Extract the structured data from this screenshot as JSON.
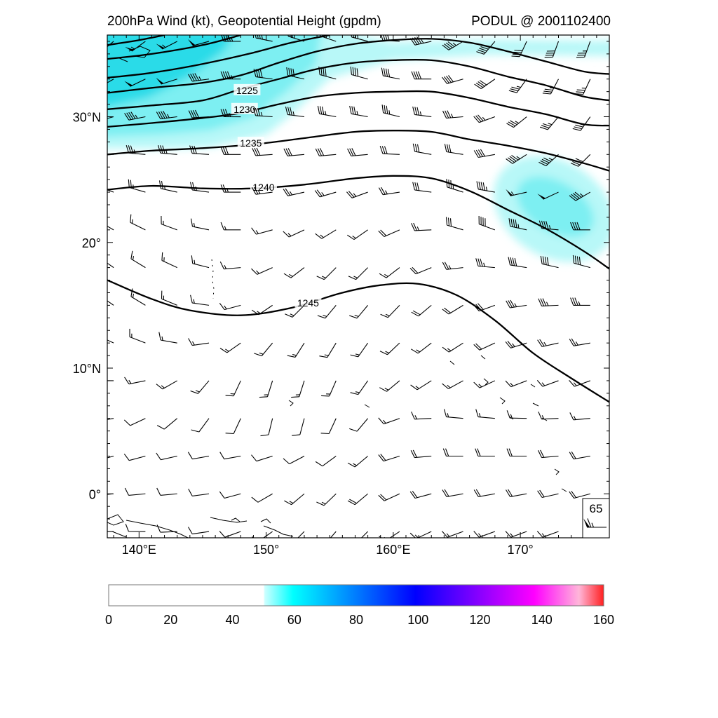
{
  "header": {
    "title": "200hPa Wind (kt), Geopotential Height (gpdm)",
    "storm_label": "PODUL @ 2001102400"
  },
  "map": {
    "lon_range": [
      137.5,
      177.0
    ],
    "lat_range": [
      -3.5,
      36.5
    ],
    "lon_ticks": [
      {
        "value": 140,
        "label": "140°E"
      },
      {
        "value": 150,
        "label": "150°"
      },
      {
        "value": 160,
        "label": "160°E"
      },
      {
        "value": 170,
        "label": "170°"
      }
    ],
    "lat_ticks": [
      {
        "value": 30,
        "label": "30°N"
      },
      {
        "value": 20,
        "label": "20°"
      },
      {
        "value": 10,
        "label": "10°N"
      },
      {
        "value": 0,
        "label": "0°"
      }
    ],
    "shading_colors": {
      "light": "#b8f8f8",
      "mid": "#7deff2",
      "strong": "#29dbe8"
    },
    "contour_color": "#000000",
    "geopotential_contours": [
      {
        "value": 1245,
        "label": "1245",
        "points": [
          [
            137.5,
            17
          ],
          [
            141,
            15.5
          ],
          [
            144,
            14.6
          ],
          [
            148,
            14.2
          ],
          [
            152,
            14.8
          ],
          [
            156,
            16
          ],
          [
            159,
            16.6
          ],
          [
            162,
            16.7
          ],
          [
            165,
            15.8
          ],
          [
            168,
            13.8
          ],
          [
            171,
            11.2
          ],
          [
            174,
            9.2
          ],
          [
            177,
            7.3
          ]
        ],
        "label_at": [
          153.3,
          15.2
        ]
      },
      {
        "value": 1240,
        "label": "1240",
        "points": [
          [
            137.5,
            24.2
          ],
          [
            141,
            24.5
          ],
          [
            145,
            24.3
          ],
          [
            149,
            24.3
          ],
          [
            153,
            24.6
          ],
          [
            157,
            25.1
          ],
          [
            160,
            25.3
          ],
          [
            163,
            25.1
          ],
          [
            166,
            24.1
          ],
          [
            169,
            22.6
          ],
          [
            172,
            21.1
          ],
          [
            175,
            19.3
          ],
          [
            177,
            17.9
          ]
        ],
        "label_at": [
          149.8,
          24.4
        ]
      },
      {
        "value": 1235,
        "label": "1235",
        "points": [
          [
            137.5,
            27
          ],
          [
            141,
            27.3
          ],
          [
            145,
            27.5
          ],
          [
            149,
            27.8
          ],
          [
            153,
            28.3
          ],
          [
            157,
            28.8
          ],
          [
            160,
            28.9
          ],
          [
            163,
            28.8
          ],
          [
            166,
            28.2
          ],
          [
            169,
            27.7
          ],
          [
            172,
            27.1
          ],
          [
            175,
            26.3
          ],
          [
            177,
            25.7
          ]
        ],
        "label_at": [
          148.8,
          27.9
        ]
      },
      {
        "value": 1230,
        "label": "1230",
        "points": [
          [
            137.5,
            29.2
          ],
          [
            141,
            29.5
          ],
          [
            145,
            29.9
          ],
          [
            148,
            30.3
          ],
          [
            151,
            31
          ],
          [
            154,
            31.6
          ],
          [
            157,
            31.9
          ],
          [
            160,
            32
          ],
          [
            163,
            32
          ],
          [
            166,
            31.5
          ],
          [
            169,
            30.8
          ],
          [
            172,
            30.2
          ],
          [
            175,
            29.4
          ],
          [
            177,
            29.3
          ]
        ],
        "label_at": [
          148.3,
          30.6
        ]
      },
      {
        "value": 1225,
        "label": "1225",
        "points": [
          [
            137.5,
            30.6
          ],
          [
            141,
            30.9
          ],
          [
            145,
            31.3
          ],
          [
            148,
            32.2
          ],
          [
            151,
            33
          ],
          [
            154,
            33.8
          ],
          [
            157,
            34.3
          ],
          [
            160,
            34.5
          ],
          [
            163,
            34.5
          ],
          [
            166,
            34
          ],
          [
            169,
            33.2
          ],
          [
            172,
            32.5
          ],
          [
            175,
            31.6
          ],
          [
            177,
            31.3
          ]
        ],
        "label_at": [
          148.5,
          32.1
        ]
      },
      {
        "value": 1220,
        "label": "",
        "points": [
          [
            137.5,
            31.9
          ],
          [
            141,
            32.3
          ],
          [
            145,
            32.7
          ],
          [
            148,
            33.3
          ],
          [
            151,
            34.3
          ],
          [
            154,
            35.2
          ],
          [
            157,
            35.8
          ],
          [
            160,
            36.1
          ],
          [
            163,
            36.2
          ],
          [
            166,
            35.9
          ],
          [
            169,
            35.2
          ],
          [
            172,
            34.4
          ],
          [
            175,
            33.6
          ],
          [
            177,
            33.4
          ]
        ],
        "label_at": null
      },
      {
        "value": 1215,
        "label": "",
        "points": [
          [
            137.5,
            33.1
          ],
          [
            141,
            33.5
          ],
          [
            145,
            34.2
          ],
          [
            149,
            35.1
          ],
          [
            152,
            35.9
          ],
          [
            155,
            36.5
          ]
        ],
        "label_at": null
      },
      {
        "value": 1210,
        "label": "",
        "points": [
          [
            137.5,
            34.6
          ],
          [
            141,
            35
          ],
          [
            145,
            35.7
          ],
          [
            148,
            36.5
          ]
        ],
        "label_at": null
      },
      {
        "value": 1205,
        "label": "",
        "points": [
          [
            137.5,
            35.7
          ],
          [
            140,
            36.1
          ],
          [
            142,
            36.5
          ]
        ],
        "label_at": null
      }
    ],
    "wind_barbs": {
      "direction_anchors": [
        [
          36,
          230,
          235,
          250,
          270,
          285,
          290,
          285,
          270,
          245,
          220,
          200,
          200
        ],
        [
          33,
          240,
          245,
          260,
          270,
          280,
          285,
          285,
          280,
          260,
          235,
          210,
          205
        ],
        [
          30,
          255,
          260,
          265,
          270,
          275,
          280,
          280,
          285,
          270,
          250,
          225,
          215
        ],
        [
          27,
          275,
          275,
          275,
          270,
          265,
          265,
          265,
          275,
          285,
          260,
          230,
          225
        ],
        [
          24,
          290,
          285,
          280,
          270,
          260,
          255,
          250,
          265,
          290,
          280,
          250,
          240
        ],
        [
          21,
          300,
          295,
          285,
          270,
          250,
          240,
          235,
          250,
          285,
          290,
          280,
          270
        ],
        [
          18,
          305,
          300,
          290,
          265,
          240,
          225,
          225,
          235,
          260,
          275,
          280,
          285
        ],
        [
          15,
          305,
          300,
          285,
          255,
          230,
          220,
          220,
          225,
          235,
          250,
          265,
          270
        ],
        [
          12,
          295,
          290,
          270,
          235,
          215,
          210,
          215,
          230,
          235,
          245,
          255,
          260
        ],
        [
          9,
          270,
          255,
          225,
          205,
          195,
          200,
          215,
          235,
          240,
          245,
          250,
          250
        ],
        [
          6,
          260,
          240,
          220,
          205,
          190,
          200,
          220,
          260,
          275,
          275,
          270,
          265
        ],
        [
          3,
          255,
          255,
          260,
          260,
          250,
          235,
          230,
          260,
          270,
          270,
          270,
          260
        ],
        [
          0,
          265,
          265,
          265,
          255,
          235,
          225,
          230,
          250,
          260,
          260,
          260,
          255
        ],
        [
          -3,
          270,
          270,
          265,
          250,
          230,
          220,
          225,
          240,
          250,
          250,
          250,
          250
        ]
      ],
      "speed_anchors": [
        [
          36,
          55,
          55,
          50,
          45,
          40,
          35,
          35,
          40,
          45,
          45,
          40,
          35
        ],
        [
          33,
          50,
          50,
          45,
          45,
          40,
          40,
          40,
          40,
          40,
          40,
          35,
          35
        ],
        [
          30,
          45,
          45,
          40,
          35,
          35,
          35,
          35,
          35,
          35,
          35,
          35,
          35
        ],
        [
          27,
          35,
          35,
          30,
          30,
          30,
          30,
          30,
          30,
          30,
          40,
          45,
          40
        ],
        [
          24,
          25,
          25,
          25,
          25,
          25,
          25,
          25,
          25,
          30,
          45,
          55,
          45
        ],
        [
          21,
          20,
          15,
          15,
          15,
          15,
          15,
          15,
          20,
          30,
          40,
          45,
          40
        ],
        [
          18,
          15,
          15,
          15,
          15,
          15,
          15,
          15,
          15,
          25,
          35,
          40,
          40
        ],
        [
          15,
          15,
          15,
          15,
          15,
          15,
          15,
          15,
          15,
          20,
          30,
          35,
          35
        ],
        [
          12,
          15,
          15,
          15,
          15,
          15,
          15,
          15,
          15,
          15,
          20,
          25,
          25
        ],
        [
          9,
          10,
          15,
          15,
          15,
          15,
          15,
          15,
          15,
          15,
          15,
          15,
          15
        ],
        [
          6,
          10,
          10,
          10,
          10,
          10,
          10,
          10,
          15,
          15,
          15,
          15,
          15
        ],
        [
          3,
          10,
          10,
          10,
          10,
          10,
          10,
          15,
          20,
          20,
          20,
          20,
          20
        ],
        [
          0,
          10,
          10,
          10,
          10,
          10,
          15,
          20,
          20,
          20,
          20,
          20,
          20
        ],
        [
          -3,
          5,
          10,
          10,
          10,
          10,
          15,
          15,
          15,
          15,
          15,
          15,
          15
        ]
      ]
    },
    "reference_vector": {
      "value": "65",
      "speed_kt": 65
    }
  },
  "colorbar": {
    "min": 0,
    "max": 160,
    "threshold": 50,
    "labels": [
      "0",
      "20",
      "40",
      "60",
      "80",
      "100",
      "120",
      "140",
      "160"
    ],
    "color_stops": [
      "#ffffff",
      "#00ffff",
      "#0000ff",
      "#ff00ff",
      "#ffb6d9",
      "#ff2020"
    ]
  }
}
